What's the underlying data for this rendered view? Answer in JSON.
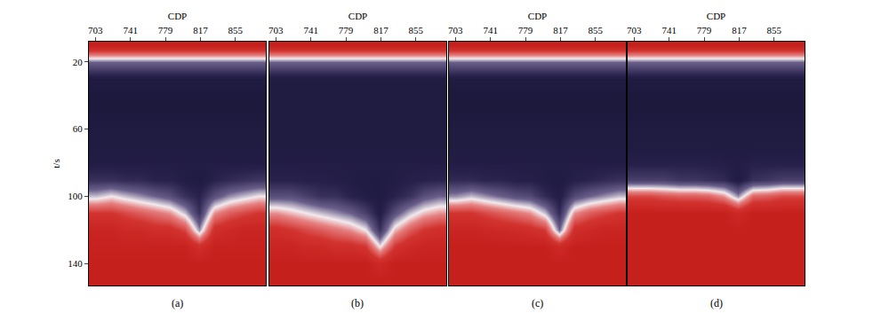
{
  "chart_data": [
    {
      "type": "heatmap",
      "title": "(a)",
      "xlabel": "CDP",
      "ylabel": "t/s",
      "xlim": [
        696,
        888
      ],
      "xticks": [
        703,
        741,
        779,
        817,
        855
      ],
      "ylim": [
        153,
        8
      ],
      "yticks": [
        20,
        60,
        100,
        140
      ],
      "zlim": [
        0,
        1
      ],
      "x": [
        704,
        720,
        736,
        752,
        768,
        784,
        800,
        816,
        832,
        848,
        864,
        880
      ],
      "y": [
        10,
        20,
        30,
        40,
        50,
        60,
        70,
        80,
        90,
        100,
        110,
        120,
        130,
        140,
        150
      ],
      "cells": [
        [
          1,
          1,
          1,
          1,
          1,
          1,
          1,
          1,
          1,
          1,
          1,
          1
        ],
        [
          0.35,
          0.35,
          0.35,
          0.35,
          0.35,
          0.35,
          0.35,
          0.35,
          0.35,
          0.35,
          0.35,
          0.35
        ],
        [
          0.1,
          0.1,
          0.1,
          0.1,
          0.1,
          0.1,
          0.1,
          0.1,
          0.1,
          0.1,
          0.1,
          0.1
        ],
        [
          0.08,
          0.08,
          0.08,
          0.08,
          0.08,
          0.08,
          0.08,
          0.08,
          0.08,
          0.08,
          0.08,
          0.08
        ],
        [
          0.08,
          0.08,
          0.08,
          0.08,
          0.08,
          0.08,
          0.08,
          0.08,
          0.08,
          0.08,
          0.08,
          0.08
        ],
        [
          0.1,
          0.1,
          0.1,
          0.1,
          0.1,
          0.1,
          0.1,
          0.1,
          0.1,
          0.1,
          0.1,
          0.1
        ],
        [
          0.1,
          0.1,
          0.1,
          0.1,
          0.1,
          0.1,
          0.1,
          0.1,
          0.1,
          0.1,
          0.1,
          0.1
        ],
        [
          0.12,
          0.12,
          0.12,
          0.12,
          0.12,
          0.12,
          0.12,
          0.12,
          0.12,
          0.12,
          0.12,
          0.12
        ],
        [
          0.2,
          0.2,
          0.18,
          0.18,
          0.15,
          0.15,
          0.12,
          0.1,
          0.15,
          0.18,
          0.2,
          0.22
        ],
        [
          0.45,
          0.5,
          0.45,
          0.4,
          0.35,
          0.3,
          0.2,
          0.15,
          0.3,
          0.4,
          0.45,
          0.5
        ],
        [
          0.8,
          0.8,
          0.75,
          0.7,
          0.65,
          0.6,
          0.45,
          0.2,
          0.6,
          0.7,
          0.75,
          0.8
        ],
        [
          0.95,
          0.95,
          0.9,
          0.9,
          0.85,
          0.85,
          0.75,
          0.4,
          0.85,
          0.9,
          0.95,
          0.95
        ],
        [
          0.98,
          0.98,
          0.98,
          0.98,
          0.98,
          0.98,
          0.98,
          0.85,
          0.98,
          0.98,
          0.98,
          0.98
        ],
        [
          1,
          1,
          1,
          1,
          1,
          1,
          1,
          1,
          1,
          1,
          1,
          1
        ],
        [
          1,
          1,
          1,
          1,
          1,
          1,
          1,
          1,
          1,
          1,
          1,
          1
        ]
      ]
    },
    {
      "type": "heatmap",
      "title": "(b)",
      "xlabel": "CDP",
      "tick_labels": "x",
      "xlim": [
        696,
        888
      ],
      "xticks": [
        703,
        741,
        779,
        817,
        855
      ],
      "ylim": [
        153,
        8
      ],
      "zlim": [
        0,
        1
      ],
      "x": [
        704,
        720,
        736,
        752,
        768,
        784,
        800,
        816,
        832,
        848,
        864,
        880
      ],
      "y": [
        10,
        20,
        30,
        40,
        50,
        60,
        70,
        80,
        90,
        100,
        110,
        120,
        130,
        140,
        150
      ],
      "cells": [
        [
          1,
          1,
          1,
          1,
          1,
          1,
          1,
          1,
          1,
          1,
          1,
          1
        ],
        [
          0.35,
          0.35,
          0.35,
          0.35,
          0.35,
          0.35,
          0.35,
          0.35,
          0.35,
          0.35,
          0.35,
          0.35
        ],
        [
          0.1,
          0.1,
          0.1,
          0.1,
          0.1,
          0.1,
          0.1,
          0.1,
          0.1,
          0.1,
          0.1,
          0.1
        ],
        [
          0.1,
          0.1,
          0.1,
          0.1,
          0.1,
          0.1,
          0.1,
          0.1,
          0.1,
          0.1,
          0.1,
          0.1
        ],
        [
          0.1,
          0.1,
          0.1,
          0.1,
          0.1,
          0.1,
          0.1,
          0.1,
          0.1,
          0.1,
          0.1,
          0.1
        ],
        [
          0.1,
          0.1,
          0.1,
          0.1,
          0.1,
          0.1,
          0.1,
          0.1,
          0.1,
          0.1,
          0.1,
          0.1
        ],
        [
          0.1,
          0.1,
          0.1,
          0.1,
          0.1,
          0.1,
          0.1,
          0.1,
          0.1,
          0.1,
          0.1,
          0.1
        ],
        [
          0.12,
          0.12,
          0.12,
          0.12,
          0.12,
          0.12,
          0.12,
          0.12,
          0.12,
          0.12,
          0.12,
          0.12
        ],
        [
          0.15,
          0.15,
          0.14,
          0.14,
          0.13,
          0.12,
          0.1,
          0.1,
          0.12,
          0.14,
          0.15,
          0.16
        ],
        [
          0.3,
          0.3,
          0.25,
          0.2,
          0.2,
          0.15,
          0.12,
          0.1,
          0.15,
          0.2,
          0.3,
          0.35
        ],
        [
          0.6,
          0.55,
          0.5,
          0.45,
          0.4,
          0.35,
          0.25,
          0.12,
          0.3,
          0.45,
          0.55,
          0.6
        ],
        [
          0.85,
          0.8,
          0.75,
          0.7,
          0.65,
          0.6,
          0.5,
          0.2,
          0.55,
          0.7,
          0.8,
          0.85
        ],
        [
          0.95,
          0.95,
          0.9,
          0.9,
          0.85,
          0.85,
          0.8,
          0.5,
          0.8,
          0.9,
          0.95,
          0.95
        ],
        [
          1,
          1,
          1,
          1,
          1,
          1,
          1,
          0.9,
          1,
          1,
          1,
          1
        ],
        [
          1,
          1,
          1,
          1,
          1,
          1,
          1,
          1,
          1,
          1,
          1,
          1
        ]
      ]
    },
    {
      "type": "heatmap",
      "title": "(c)",
      "xlabel": "CDP",
      "tick_labels": "x",
      "xlim": [
        696,
        888
      ],
      "xticks": [
        703,
        741,
        779,
        817,
        855
      ],
      "ylim": [
        153,
        8
      ],
      "zlim": [
        0,
        1
      ],
      "x": [
        704,
        720,
        736,
        752,
        768,
        784,
        800,
        816,
        832,
        848,
        864,
        880
      ],
      "y": [
        10,
        20,
        30,
        40,
        50,
        60,
        70,
        80,
        90,
        100,
        110,
        120,
        130,
        140,
        150
      ],
      "cells": [
        [
          1,
          1,
          1,
          1,
          1,
          1,
          1,
          1,
          1,
          1,
          1,
          1
        ],
        [
          0.35,
          0.35,
          0.35,
          0.35,
          0.35,
          0.35,
          0.35,
          0.35,
          0.35,
          0.35,
          0.35,
          0.35
        ],
        [
          0.1,
          0.1,
          0.1,
          0.1,
          0.1,
          0.1,
          0.1,
          0.1,
          0.1,
          0.1,
          0.1,
          0.1
        ],
        [
          0.08,
          0.08,
          0.08,
          0.08,
          0.08,
          0.08,
          0.08,
          0.08,
          0.08,
          0.08,
          0.08,
          0.08
        ],
        [
          0.08,
          0.08,
          0.08,
          0.08,
          0.08,
          0.08,
          0.08,
          0.08,
          0.08,
          0.08,
          0.08,
          0.08
        ],
        [
          0.1,
          0.1,
          0.1,
          0.1,
          0.1,
          0.1,
          0.1,
          0.1,
          0.1,
          0.1,
          0.1,
          0.1
        ],
        [
          0.1,
          0.1,
          0.1,
          0.1,
          0.1,
          0.1,
          0.1,
          0.1,
          0.1,
          0.1,
          0.1,
          0.1
        ],
        [
          0.12,
          0.12,
          0.12,
          0.12,
          0.12,
          0.12,
          0.12,
          0.12,
          0.12,
          0.12,
          0.12,
          0.12
        ],
        [
          0.18,
          0.18,
          0.16,
          0.16,
          0.14,
          0.14,
          0.12,
          0.1,
          0.14,
          0.16,
          0.18,
          0.2
        ],
        [
          0.4,
          0.45,
          0.4,
          0.35,
          0.3,
          0.28,
          0.18,
          0.12,
          0.28,
          0.35,
          0.4,
          0.45
        ],
        [
          0.8,
          0.8,
          0.75,
          0.7,
          0.65,
          0.6,
          0.45,
          0.18,
          0.6,
          0.7,
          0.75,
          0.8
        ],
        [
          0.95,
          0.95,
          0.92,
          0.9,
          0.88,
          0.85,
          0.78,
          0.35,
          0.85,
          0.9,
          0.95,
          0.95
        ],
        [
          1,
          1,
          1,
          1,
          1,
          1,
          1,
          0.9,
          1,
          1,
          1,
          1
        ],
        [
          1,
          1,
          1,
          1,
          1,
          1,
          1,
          1,
          1,
          1,
          1,
          1
        ],
        [
          1,
          1,
          1,
          1,
          1,
          1,
          1,
          1,
          1,
          1,
          1,
          1
        ]
      ]
    },
    {
      "type": "heatmap",
      "title": "(d)",
      "xlabel": "CDP",
      "tick_labels": "x",
      "xlim": [
        696,
        888
      ],
      "xticks": [
        703,
        741,
        779,
        817,
        855
      ],
      "ylim": [
        153,
        8
      ],
      "zlim": [
        0,
        1
      ],
      "x": [
        704,
        720,
        736,
        752,
        768,
        784,
        800,
        816,
        832,
        848,
        864,
        880
      ],
      "y": [
        10,
        20,
        30,
        40,
        50,
        60,
        70,
        80,
        90,
        100,
        110,
        120,
        130,
        140,
        150
      ],
      "cells": [
        [
          1,
          1,
          1,
          1,
          1,
          1,
          1,
          1,
          1,
          1,
          1,
          1
        ],
        [
          0.35,
          0.35,
          0.35,
          0.35,
          0.35,
          0.35,
          0.35,
          0.35,
          0.35,
          0.35,
          0.35,
          0.35
        ],
        [
          0.1,
          0.1,
          0.1,
          0.1,
          0.1,
          0.1,
          0.1,
          0.1,
          0.1,
          0.1,
          0.1,
          0.1
        ],
        [
          0.08,
          0.08,
          0.08,
          0.08,
          0.08,
          0.08,
          0.08,
          0.08,
          0.08,
          0.08,
          0.08,
          0.08
        ],
        [
          0.08,
          0.08,
          0.08,
          0.08,
          0.08,
          0.08,
          0.08,
          0.08,
          0.08,
          0.08,
          0.08,
          0.08
        ],
        [
          0.1,
          0.1,
          0.1,
          0.1,
          0.1,
          0.1,
          0.1,
          0.1,
          0.1,
          0.1,
          0.1,
          0.1
        ],
        [
          0.1,
          0.1,
          0.1,
          0.1,
          0.1,
          0.1,
          0.1,
          0.1,
          0.1,
          0.1,
          0.1,
          0.1
        ],
        [
          0.14,
          0.14,
          0.14,
          0.14,
          0.14,
          0.14,
          0.13,
          0.12,
          0.14,
          0.14,
          0.14,
          0.14
        ],
        [
          0.25,
          0.25,
          0.25,
          0.22,
          0.22,
          0.2,
          0.18,
          0.1,
          0.2,
          0.22,
          0.25,
          0.25
        ],
        [
          0.75,
          0.75,
          0.72,
          0.7,
          0.7,
          0.68,
          0.6,
          0.4,
          0.68,
          0.7,
          0.75,
          0.75
        ],
        [
          1,
          1,
          1,
          1,
          1,
          1,
          1,
          0.9,
          1,
          1,
          1,
          1
        ],
        [
          1,
          1,
          1,
          1,
          1,
          1,
          1,
          1,
          1,
          1,
          1,
          1
        ],
        [
          1,
          1,
          1,
          1,
          1,
          1,
          1,
          1,
          1,
          1,
          1,
          1
        ],
        [
          1,
          1,
          1,
          1,
          1,
          1,
          1,
          1,
          1,
          1,
          1,
          1
        ],
        [
          1,
          1,
          1,
          1,
          1,
          1,
          1,
          1,
          1,
          1,
          1,
          1
        ]
      ]
    }
  ]
}
